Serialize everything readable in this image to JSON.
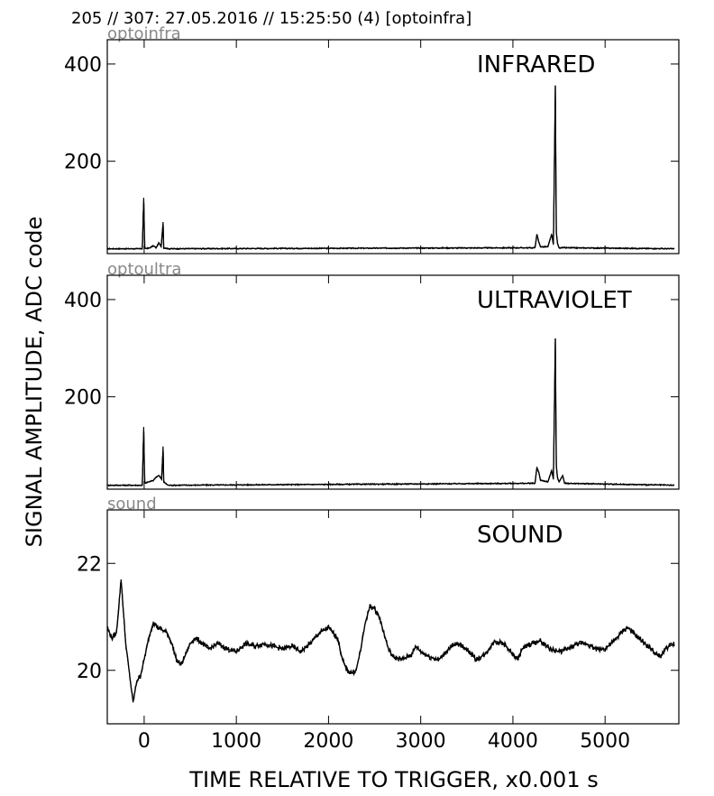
{
  "header": {
    "text": "205 // 307:   27.05.2016 // 15:25:50 (4)  [optoinfra]"
  },
  "chart_data": {
    "type": "line",
    "xlabel": "TIME RELATIVE TO TRIGGER,   x0.001 s",
    "ylabel": "SIGNAL AMPLITUDE,  ADC code",
    "xlim": [
      -400,
      5800
    ],
    "xticks": [
      0,
      1000,
      2000,
      3000,
      4000,
      5000
    ],
    "panels": [
      {
        "id": "infrared",
        "corner_label": "optoinfra",
        "title": "INFRARED",
        "ylim": [
          10,
          450
        ],
        "yticks": [
          200,
          400
        ],
        "baseline": 20,
        "points": [
          [
            -400,
            20
          ],
          [
            -20,
            20
          ],
          [
            -5,
            125
          ],
          [
            0,
            80
          ],
          [
            5,
            21
          ],
          [
            50,
            21
          ],
          [
            100,
            26
          ],
          [
            130,
            22
          ],
          [
            160,
            32
          ],
          [
            185,
            24
          ],
          [
            205,
            75
          ],
          [
            212,
            22
          ],
          [
            260,
            20
          ],
          [
            4240,
            22
          ],
          [
            4260,
            50
          ],
          [
            4280,
            34
          ],
          [
            4300,
            24
          ],
          [
            4380,
            24
          ],
          [
            4420,
            50
          ],
          [
            4440,
            28
          ],
          [
            4460,
            355
          ],
          [
            4470,
            55
          ],
          [
            4485,
            30
          ],
          [
            4500,
            22
          ],
          [
            4540,
            22
          ],
          [
            5750,
            20
          ]
        ]
      },
      {
        "id": "ultraviolet",
        "corner_label": "optoultra",
        "title": "ULTRAVIOLET",
        "ylim": [
          10,
          450
        ],
        "yticks": [
          200,
          400
        ],
        "baseline": 18,
        "points": [
          [
            -400,
            18
          ],
          [
            -20,
            18
          ],
          [
            -5,
            138
          ],
          [
            0,
            85
          ],
          [
            5,
            22
          ],
          [
            50,
            25
          ],
          [
            100,
            28
          ],
          [
            130,
            35
          ],
          [
            160,
            38
          ],
          [
            190,
            30
          ],
          [
            205,
            98
          ],
          [
            212,
            25
          ],
          [
            260,
            18
          ],
          [
            4240,
            22
          ],
          [
            4260,
            55
          ],
          [
            4280,
            45
          ],
          [
            4300,
            28
          ],
          [
            4380,
            25
          ],
          [
            4420,
            48
          ],
          [
            4440,
            30
          ],
          [
            4460,
            320
          ],
          [
            4470,
            60
          ],
          [
            4485,
            32
          ],
          [
            4500,
            25
          ],
          [
            4540,
            38
          ],
          [
            4560,
            22
          ],
          [
            5750,
            18
          ]
        ]
      },
      {
        "id": "sound",
        "corner_label": "sound",
        "title": "SOUND",
        "ylim": [
          19.0,
          23.0
        ],
        "yticks": [
          20,
          22
        ],
        "baseline": null,
        "points": [
          [
            -400,
            20.8
          ],
          [
            -350,
            20.6
          ],
          [
            -300,
            20.7
          ],
          [
            -250,
            21.7
          ],
          [
            -200,
            20.5
          ],
          [
            -150,
            19.8
          ],
          [
            -120,
            19.4
          ],
          [
            -80,
            19.8
          ],
          [
            -40,
            19.9
          ],
          [
            0,
            20.2
          ],
          [
            50,
            20.6
          ],
          [
            100,
            20.9
          ],
          [
            150,
            20.8
          ],
          [
            200,
            20.75
          ],
          [
            250,
            20.7
          ],
          [
            300,
            20.5
          ],
          [
            350,
            20.2
          ],
          [
            400,
            20.1
          ],
          [
            450,
            20.3
          ],
          [
            500,
            20.5
          ],
          [
            550,
            20.6
          ],
          [
            600,
            20.55
          ],
          [
            700,
            20.4
          ],
          [
            800,
            20.5
          ],
          [
            900,
            20.4
          ],
          [
            1000,
            20.35
          ],
          [
            1100,
            20.5
          ],
          [
            1200,
            20.45
          ],
          [
            1300,
            20.5
          ],
          [
            1400,
            20.45
          ],
          [
            1500,
            20.4
          ],
          [
            1600,
            20.45
          ],
          [
            1700,
            20.35
          ],
          [
            1800,
            20.5
          ],
          [
            1900,
            20.7
          ],
          [
            2000,
            20.8
          ],
          [
            2100,
            20.6
          ],
          [
            2150,
            20.2
          ],
          [
            2200,
            20.0
          ],
          [
            2250,
            19.95
          ],
          [
            2300,
            20.0
          ],
          [
            2350,
            20.4
          ],
          [
            2400,
            20.9
          ],
          [
            2450,
            21.2
          ],
          [
            2500,
            21.15
          ],
          [
            2550,
            21.0
          ],
          [
            2600,
            20.7
          ],
          [
            2650,
            20.4
          ],
          [
            2700,
            20.25
          ],
          [
            2800,
            20.2
          ],
          [
            2900,
            20.3
          ],
          [
            2950,
            20.45
          ],
          [
            3000,
            20.35
          ],
          [
            3100,
            20.25
          ],
          [
            3200,
            20.2
          ],
          [
            3300,
            20.4
          ],
          [
            3400,
            20.5
          ],
          [
            3500,
            20.4
          ],
          [
            3600,
            20.2
          ],
          [
            3700,
            20.3
          ],
          [
            3800,
            20.55
          ],
          [
            3900,
            20.5
          ],
          [
            4000,
            20.3
          ],
          [
            4050,
            20.2
          ],
          [
            4100,
            20.4
          ],
          [
            4200,
            20.5
          ],
          [
            4300,
            20.55
          ],
          [
            4400,
            20.4
          ],
          [
            4500,
            20.35
          ],
          [
            4600,
            20.4
          ],
          [
            4700,
            20.5
          ],
          [
            4800,
            20.5
          ],
          [
            4900,
            20.4
          ],
          [
            5000,
            20.4
          ],
          [
            5100,
            20.55
          ],
          [
            5200,
            20.75
          ],
          [
            5250,
            20.8
          ],
          [
            5300,
            20.7
          ],
          [
            5400,
            20.55
          ],
          [
            5500,
            20.4
          ],
          [
            5550,
            20.3
          ],
          [
            5600,
            20.25
          ],
          [
            5650,
            20.4
          ],
          [
            5700,
            20.45
          ],
          [
            5750,
            20.5
          ]
        ]
      }
    ]
  }
}
